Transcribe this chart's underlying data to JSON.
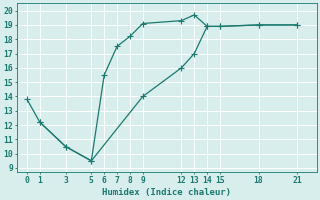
{
  "line1_x": [
    0,
    1,
    3,
    5,
    6,
    7,
    8,
    9,
    12,
    13,
    14,
    15,
    18,
    21
  ],
  "line1_y": [
    13.8,
    12.2,
    10.5,
    9.5,
    15.5,
    17.5,
    18.2,
    19.1,
    19.3,
    19.7,
    18.9,
    18.9,
    19.0,
    19.0
  ],
  "line2_x": [
    1,
    3,
    5,
    9,
    12,
    13,
    14,
    15,
    18,
    21
  ],
  "line2_y": [
    12.2,
    10.5,
    9.5,
    14.0,
    16.0,
    17.0,
    18.9,
    18.9,
    19.0,
    19.0
  ],
  "line_color": "#1a7a6e",
  "markersize": 2.5,
  "xlabel": "Humidex (Indice chaleur)",
  "xticks": [
    0,
    1,
    3,
    5,
    6,
    7,
    8,
    9,
    12,
    13,
    14,
    15,
    18,
    21
  ],
  "yticks": [
    9,
    10,
    11,
    12,
    13,
    14,
    15,
    16,
    17,
    18,
    19,
    20
  ],
  "xlim": [
    -0.8,
    22.5
  ],
  "ylim": [
    8.7,
    20.5
  ],
  "bg_color": "#d8eeed",
  "grid_color": "#b8d8d8",
  "font_color": "#1a7a6e",
  "xlabel_fontsize": 6.5,
  "tick_fontsize": 5.8,
  "lw": 0.9
}
